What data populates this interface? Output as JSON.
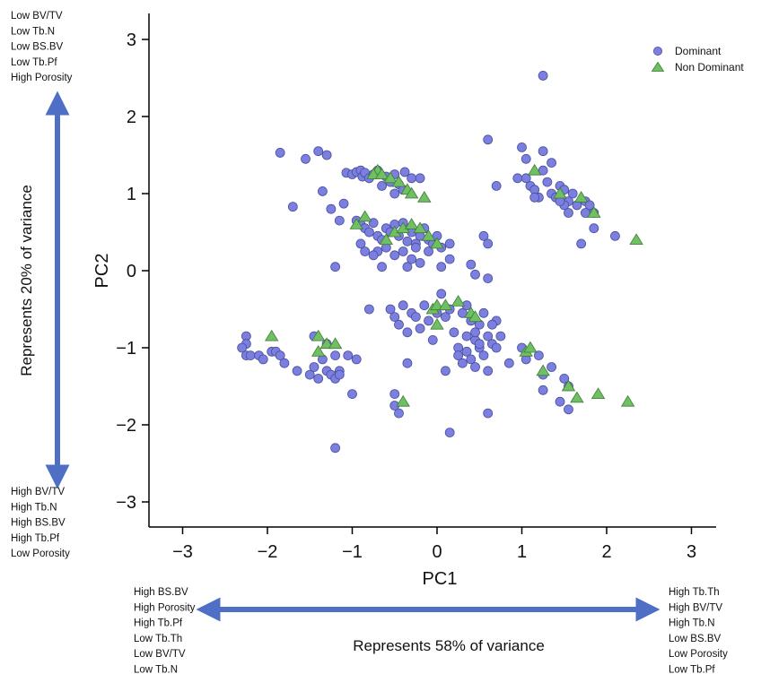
{
  "chart_data": {
    "type": "scatter",
    "xlabel": "PC1",
    "ylabel": "PC2",
    "xlim": [
      -3.3,
      3.3
    ],
    "ylim": [
      -3.3,
      3.3
    ],
    "xticks": [
      -3,
      -2,
      -1,
      0,
      1,
      2,
      3
    ],
    "xtick_labels": [
      "−3",
      "−2",
      "−1",
      "0",
      "1",
      "2",
      "3"
    ],
    "yticks": [
      -3,
      -2,
      -1,
      0,
      1,
      2,
      3
    ],
    "ytick_labels": [
      "−3",
      "−2",
      "−1",
      "0",
      "1",
      "2",
      "3"
    ],
    "grid": false,
    "legend_position": "top-right",
    "series": [
      {
        "name": "Dominant",
        "marker": "circle",
        "color": "#7b7fe0",
        "points": [
          [
            -1.85,
            1.53
          ],
          [
            -1.55,
            1.45
          ],
          [
            -1.4,
            1.55
          ],
          [
            -1.3,
            1.5
          ],
          [
            -1.35,
            1.03
          ],
          [
            -1.7,
            0.83
          ],
          [
            -1.25,
            0.8
          ],
          [
            -1.1,
            0.87
          ],
          [
            -1.15,
            0.65
          ],
          [
            -1.07,
            1.27
          ],
          [
            -1.0,
            1.25
          ],
          [
            -0.95,
            1.28
          ],
          [
            -0.9,
            1.3
          ],
          [
            -0.88,
            1.22
          ],
          [
            -0.85,
            1.27
          ],
          [
            -0.8,
            1.2
          ],
          [
            -0.75,
            1.25
          ],
          [
            -0.7,
            1.3
          ],
          [
            -0.6,
            1.22
          ],
          [
            -0.55,
            1.15
          ],
          [
            -0.5,
            1.25
          ],
          [
            -0.45,
            1.12
          ],
          [
            -0.4,
            1.05
          ],
          [
            -0.38,
            1.28
          ],
          [
            -0.3,
            1.2
          ],
          [
            -0.5,
            1.0
          ],
          [
            -0.2,
            1.2
          ],
          [
            -0.65,
            1.1
          ],
          [
            -1.2,
            0.05
          ],
          [
            -0.95,
            0.65
          ],
          [
            -0.9,
            0.6
          ],
          [
            -0.85,
            0.55
          ],
          [
            -0.8,
            0.5
          ],
          [
            -0.75,
            0.62
          ],
          [
            -0.7,
            0.45
          ],
          [
            -0.65,
            0.4
          ],
          [
            -0.6,
            0.55
          ],
          [
            -0.55,
            0.5
          ],
          [
            -0.5,
            0.6
          ],
          [
            -0.45,
            0.45
          ],
          [
            -0.4,
            0.62
          ],
          [
            -0.35,
            0.38
          ],
          [
            -0.3,
            0.5
          ],
          [
            -0.25,
            0.35
          ],
          [
            -0.2,
            0.45
          ],
          [
            -0.15,
            0.55
          ],
          [
            -0.1,
            0.4
          ],
          [
            -0.05,
            0.35
          ],
          [
            0.0,
            0.45
          ],
          [
            0.05,
            0.3
          ],
          [
            -0.6,
            0.3
          ],
          [
            -0.5,
            0.2
          ],
          [
            -0.4,
            0.25
          ],
          [
            -0.3,
            0.15
          ],
          [
            -0.2,
            0.1
          ],
          [
            -0.35,
            0.05
          ],
          [
            -0.7,
            0.25
          ],
          [
            -0.65,
            0.05
          ],
          [
            -0.9,
            0.35
          ],
          [
            -0.85,
            0.25
          ],
          [
            -0.75,
            0.2
          ],
          [
            0.05,
            0.05
          ],
          [
            0.15,
            0.35
          ],
          [
            -0.1,
            0.25
          ],
          [
            -0.25,
            0.3
          ],
          [
            0.15,
            0.15
          ],
          [
            0.6,
            1.7
          ],
          [
            0.7,
            1.1
          ],
          [
            0.55,
            0.45
          ],
          [
            0.6,
            0.35
          ],
          [
            0.4,
            0.08
          ],
          [
            0.45,
            -0.05
          ],
          [
            0.6,
            -0.1
          ],
          [
            -0.55,
            -0.5
          ],
          [
            -0.5,
            -0.6
          ],
          [
            -0.45,
            -0.7
          ],
          [
            -0.4,
            -0.45
          ],
          [
            -0.35,
            -0.8
          ],
          [
            -0.3,
            -0.55
          ],
          [
            -0.25,
            -0.6
          ],
          [
            -0.2,
            -0.75
          ],
          [
            -0.15,
            -0.45
          ],
          [
            -0.1,
            -0.65
          ],
          [
            -0.05,
            -0.9
          ],
          [
            0.0,
            -0.55
          ],
          [
            0.05,
            -0.3
          ],
          [
            0.1,
            -0.6
          ],
          [
            0.15,
            -0.5
          ],
          [
            0.2,
            -0.8
          ],
          [
            0.25,
            -1.0
          ],
          [
            0.3,
            -0.55
          ],
          [
            0.35,
            -0.45
          ],
          [
            0.4,
            -0.65
          ],
          [
            0.45,
            -0.9
          ],
          [
            0.5,
            -0.7
          ],
          [
            0.55,
            -0.55
          ],
          [
            0.6,
            -0.85
          ],
          [
            0.65,
            -0.95
          ],
          [
            0.7,
            -0.65
          ],
          [
            0.75,
            -0.85
          ],
          [
            -0.8,
            -0.5
          ],
          [
            0.25,
            -1.1
          ],
          [
            0.3,
            -1.2
          ],
          [
            0.35,
            -1.05
          ],
          [
            0.4,
            -1.15
          ],
          [
            0.45,
            -1.25
          ],
          [
            0.5,
            -1.0
          ],
          [
            0.55,
            -1.1
          ],
          [
            0.6,
            -1.3
          ],
          [
            0.7,
            -1.0
          ],
          [
            0.35,
            -0.85
          ],
          [
            0.45,
            -0.8
          ],
          [
            0.5,
            -0.95
          ],
          [
            0.65,
            -0.7
          ],
          [
            -0.35,
            -1.2
          ],
          [
            0.1,
            -1.3
          ],
          [
            0.85,
            -1.2
          ],
          [
            1.0,
            -1.0
          ],
          [
            1.05,
            -1.15
          ],
          [
            1.2,
            -1.1
          ],
          [
            1.25,
            -1.35
          ],
          [
            1.35,
            -1.25
          ],
          [
            1.5,
            -1.4
          ],
          [
            1.55,
            -1.5
          ],
          [
            1.25,
            -1.55
          ],
          [
            1.45,
            -1.7
          ],
          [
            1.55,
            -1.8
          ],
          [
            -0.5,
            -1.6
          ],
          [
            -0.5,
            -1.75
          ],
          [
            -0.45,
            -1.85
          ],
          [
            0.15,
            -2.1
          ],
          [
            0.6,
            -1.85
          ],
          [
            -1.2,
            -2.3
          ],
          [
            -2.25,
            -0.85
          ],
          [
            -2.25,
            -0.95
          ],
          [
            -2.3,
            -1.0
          ],
          [
            -2.25,
            -1.1
          ],
          [
            -2.2,
            -1.1
          ],
          [
            -2.1,
            -1.1
          ],
          [
            -2.05,
            -1.15
          ],
          [
            -1.95,
            -1.05
          ],
          [
            -1.9,
            -1.05
          ],
          [
            -1.85,
            -1.1
          ],
          [
            -1.8,
            -1.2
          ],
          [
            -1.65,
            -1.3
          ],
          [
            -1.5,
            -1.35
          ],
          [
            -1.45,
            -1.25
          ],
          [
            -1.4,
            -1.4
          ],
          [
            -1.35,
            -1.15
          ],
          [
            -1.3,
            -1.3
          ],
          [
            -1.25,
            -1.35
          ],
          [
            -1.2,
            -1.4
          ],
          [
            -1.2,
            -1.1
          ],
          [
            -1.15,
            -1.3
          ],
          [
            -1.15,
            -1.35
          ],
          [
            -1.05,
            -1.1
          ],
          [
            -0.95,
            -1.15
          ],
          [
            -1.0,
            -1.6
          ],
          [
            -1.45,
            -0.85
          ],
          [
            -1.3,
            -0.95
          ],
          [
            1.0,
            1.6
          ],
          [
            1.05,
            1.45
          ],
          [
            1.25,
            1.55
          ],
          [
            1.35,
            1.4
          ],
          [
            0.95,
            1.2
          ],
          [
            1.1,
            1.1
          ],
          [
            1.05,
            1.2
          ],
          [
            1.15,
            1.05
          ],
          [
            1.2,
            0.95
          ],
          [
            1.25,
            1.3
          ],
          [
            1.3,
            1.15
          ],
          [
            1.35,
            1.0
          ],
          [
            1.4,
            0.95
          ],
          [
            1.45,
            1.1
          ],
          [
            1.5,
            1.05
          ],
          [
            1.55,
            0.9
          ],
          [
            1.6,
            1.0
          ],
          [
            1.65,
            0.85
          ],
          [
            1.75,
            0.9
          ],
          [
            1.8,
            0.85
          ],
          [
            1.85,
            0.75
          ],
          [
            1.5,
            0.85
          ],
          [
            1.45,
            0.9
          ],
          [
            1.75,
            0.75
          ],
          [
            1.85,
            0.55
          ],
          [
            1.55,
            0.75
          ],
          [
            1.7,
            0.35
          ],
          [
            2.1,
            0.45
          ],
          [
            1.15,
            0.95
          ],
          [
            1.25,
            2.53
          ]
        ]
      },
      {
        "name": "Non Dominant",
        "marker": "triangle",
        "color": "#6fbf63",
        "points": [
          [
            -0.7,
            1.3
          ],
          [
            -0.75,
            1.25
          ],
          [
            -0.65,
            1.25
          ],
          [
            -0.55,
            1.2
          ],
          [
            -0.45,
            1.15
          ],
          [
            -0.35,
            1.05
          ],
          [
            -0.3,
            1.0
          ],
          [
            -0.15,
            0.95
          ],
          [
            -0.85,
            0.7
          ],
          [
            -0.95,
            0.6
          ],
          [
            -0.6,
            0.4
          ],
          [
            -0.5,
            0.5
          ],
          [
            -0.4,
            0.55
          ],
          [
            -0.3,
            0.6
          ],
          [
            -0.2,
            0.55
          ],
          [
            -0.1,
            0.45
          ],
          [
            0.0,
            0.35
          ],
          [
            -0.05,
            -0.5
          ],
          [
            0.0,
            -0.45
          ],
          [
            0.1,
            -0.45
          ],
          [
            0.25,
            -0.4
          ],
          [
            0.4,
            -0.55
          ],
          [
            0.45,
            -0.6
          ],
          [
            0.0,
            -0.7
          ],
          [
            1.15,
            1.3
          ],
          [
            1.45,
            1.0
          ],
          [
            1.7,
            0.95
          ],
          [
            1.85,
            0.75
          ],
          [
            2.35,
            0.4
          ],
          [
            1.05,
            -1.05
          ],
          [
            1.1,
            -1.0
          ],
          [
            1.25,
            -1.3
          ],
          [
            1.55,
            -1.5
          ],
          [
            1.65,
            -1.65
          ],
          [
            1.9,
            -1.6
          ],
          [
            2.25,
            -1.7
          ],
          [
            -1.95,
            -0.85
          ],
          [
            -1.4,
            -0.85
          ],
          [
            -1.3,
            -0.95
          ],
          [
            -1.2,
            -0.95
          ],
          [
            -1.4,
            -1.05
          ],
          [
            -0.4,
            -1.7
          ]
        ]
      }
    ]
  },
  "annotations": {
    "top_left": [
      "Low BV/TV",
      "Low Tb.N",
      "Low BS.BV",
      "Low Tb.Pf",
      "High Porosity"
    ],
    "bottom_left": [
      "High BV/TV",
      "High Tb.N",
      "High BS.BV",
      "High Tb.Pf",
      "Low Porosity"
    ],
    "x_left": [
      "High BS.BV",
      "High Porosity",
      "High Tb.Pf",
      "Low Tb.Th",
      "Low BV/TV",
      "Low Tb.N"
    ],
    "x_right": [
      "High Tb.Th",
      "High BV/TV",
      "High Tb.N",
      "Low BS.BV",
      "Low Porosity",
      "Low Tb.Pf"
    ],
    "y_variance": "Represents 20% of variance",
    "x_variance": "Represents 58% of variance"
  },
  "colors": {
    "arrow": "#4f6fc7",
    "axis": "#000000",
    "dominant_edge": "#4a4e9c",
    "non_dominant_edge": "#3f7a36"
  }
}
